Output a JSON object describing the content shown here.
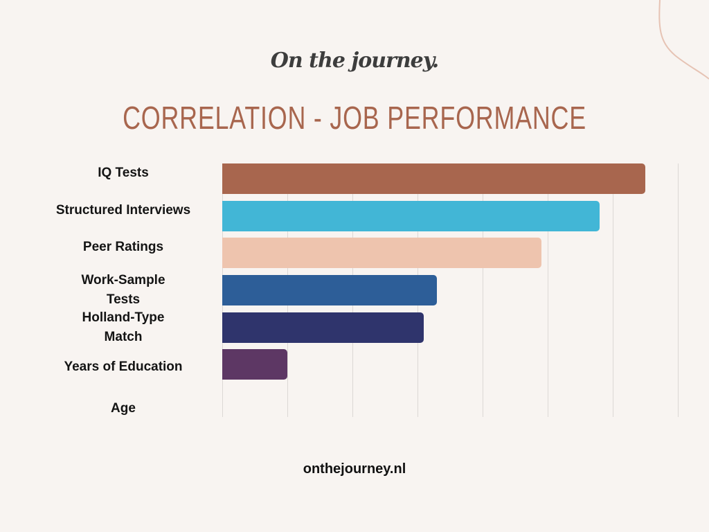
{
  "brand": {
    "logo_text": "On the journey."
  },
  "footer": {
    "url": "onthejourney.nl"
  },
  "colors": {
    "background": "#f8f4f1",
    "title": "#a8664e",
    "grid": "#dcd8d5",
    "decor_curve": "#e6c3b4"
  },
  "chart_data": {
    "type": "bar",
    "orientation": "horizontal",
    "title": "CORRELATION - JOB PERFORMANCE",
    "xlabel": "",
    "ylabel": "",
    "xlim": [
      0,
      0.7
    ],
    "grid": true,
    "legend": "none",
    "categories": [
      "IQ Tests",
      "Structured Interviews",
      "Peer Ratings",
      "Work-Sample Tests",
      "Holland-Type Match",
      "Years of Education",
      "Age"
    ],
    "values": [
      0.65,
      0.58,
      0.49,
      0.33,
      0.31,
      0.1,
      0.0
    ],
    "bar_colors": [
      "#a8664e",
      "#42b6d6",
      "#eec4ae",
      "#2d5e98",
      "#2f346c",
      "#5d3764",
      "#5d3764"
    ]
  },
  "labels": {
    "row0": [
      "IQ Tests"
    ],
    "row1": [
      "Structured Interviews"
    ],
    "row2": [
      "Peer Ratings"
    ],
    "row3": [
      "Work-Sample",
      "Tests"
    ],
    "row4": [
      "Holland-Type",
      "Match"
    ],
    "row5": [
      "Years of Education"
    ],
    "row6": [
      "Age"
    ]
  }
}
